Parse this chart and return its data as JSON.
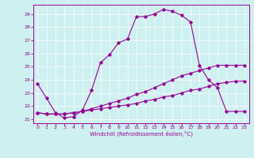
{
  "xlabel": "Windchill (Refroidissement éolien,°C)",
  "bg_color": "#cff0f0",
  "line_color": "#990099",
  "grid_color": "#ffffff",
  "xlim": [
    -0.5,
    23.5
  ],
  "ylim": [
    20.7,
    29.7
  ],
  "yticks": [
    21,
    22,
    23,
    24,
    25,
    26,
    27,
    28,
    29
  ],
  "xticks": [
    0,
    1,
    2,
    3,
    4,
    5,
    6,
    7,
    8,
    9,
    10,
    11,
    12,
    13,
    14,
    15,
    16,
    17,
    18,
    19,
    20,
    21,
    22,
    23
  ],
  "line1_x": [
    0,
    1,
    2,
    3,
    4,
    5,
    6,
    7,
    8,
    9,
    10,
    11,
    12,
    13,
    14,
    15,
    16,
    17,
    18,
    19,
    20,
    21,
    22,
    23
  ],
  "line1_y": [
    23.7,
    22.6,
    21.5,
    21.1,
    21.2,
    21.7,
    23.2,
    25.3,
    25.9,
    26.8,
    27.1,
    28.8,
    28.8,
    29.0,
    29.35,
    29.2,
    28.9,
    28.4,
    25.1,
    24.0,
    23.4,
    21.6,
    21.6,
    21.6
  ],
  "line2_x": [
    0,
    1,
    2,
    3,
    4,
    5,
    6,
    7,
    8,
    9,
    10,
    11,
    12,
    13,
    14,
    15,
    16,
    17,
    18,
    19,
    20,
    21,
    22,
    23
  ],
  "line2_y": [
    21.5,
    21.4,
    21.4,
    21.4,
    21.5,
    21.6,
    21.8,
    22.0,
    22.2,
    22.4,
    22.6,
    22.9,
    23.1,
    23.4,
    23.7,
    24.0,
    24.3,
    24.5,
    24.7,
    24.9,
    25.1,
    25.1,
    25.1,
    25.1
  ],
  "line3_x": [
    0,
    1,
    2,
    3,
    4,
    5,
    6,
    7,
    8,
    9,
    10,
    11,
    12,
    13,
    14,
    15,
    16,
    17,
    18,
    19,
    20,
    21,
    22,
    23
  ],
  "line3_y": [
    21.5,
    21.4,
    21.4,
    21.4,
    21.5,
    21.6,
    21.7,
    21.8,
    21.9,
    22.0,
    22.1,
    22.2,
    22.4,
    22.5,
    22.7,
    22.8,
    23.0,
    23.2,
    23.3,
    23.5,
    23.7,
    23.8,
    23.9,
    23.9
  ]
}
